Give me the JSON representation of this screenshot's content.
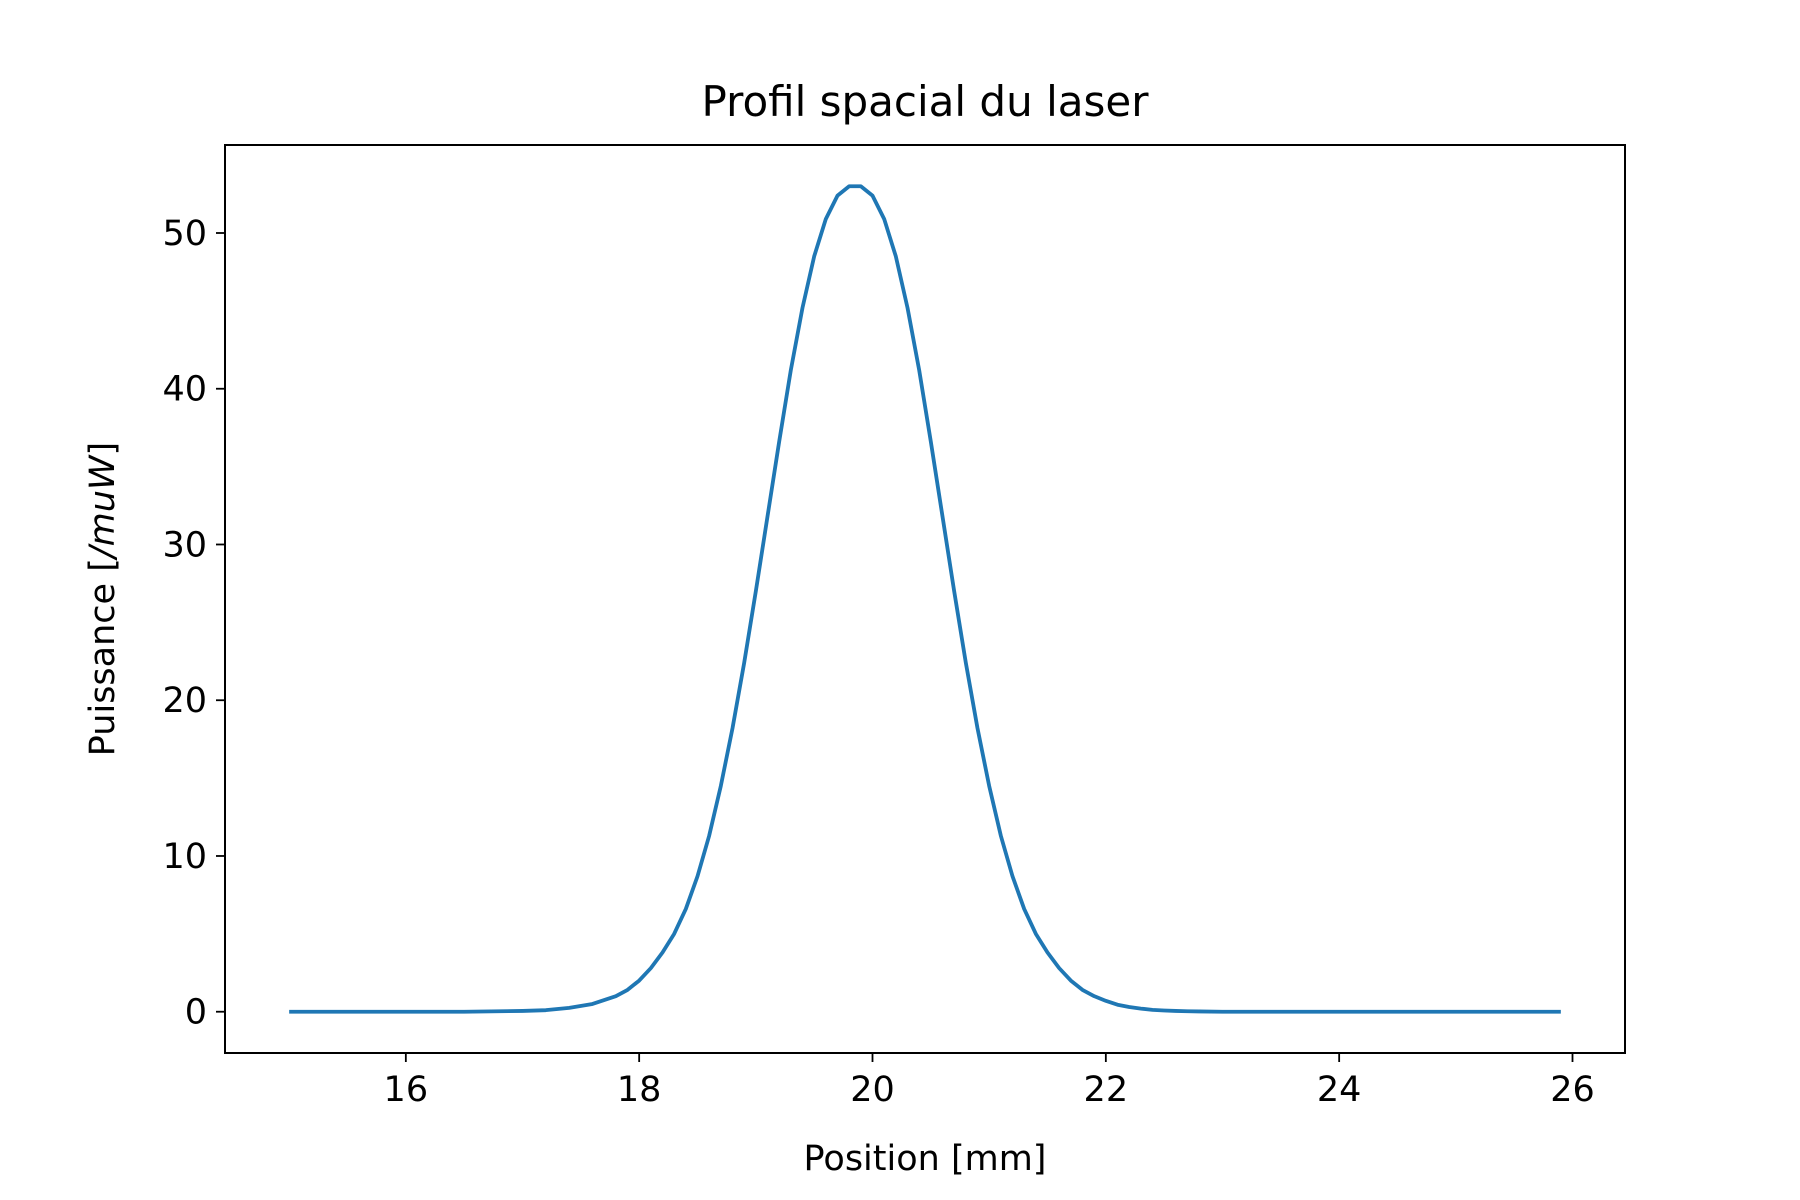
{
  "chart_data": {
    "type": "line",
    "title": "Profil spacial du laser",
    "xlabel": "Position [mm]",
    "ylabel_prefix": "Puissance [",
    "ylabel_italic": "/muW",
    "ylabel_suffix": "]",
    "xlim": [
      14.45,
      26.45
    ],
    "ylim": [
      -2.65,
      55.65
    ],
    "xticks": [
      16,
      18,
      20,
      22,
      24,
      26
    ],
    "xtick_labels": [
      "16",
      "18",
      "20",
      "22",
      "24",
      "26"
    ],
    "yticks": [
      0,
      10,
      20,
      30,
      40,
      50
    ],
    "ytick_labels": [
      "0",
      "10",
      "20",
      "30",
      "40",
      "50"
    ],
    "grid": false,
    "legend": "none",
    "series": [
      {
        "color": "#1f77b4",
        "x": [
          15.0,
          15.5,
          16.0,
          16.5,
          17.0,
          17.2,
          17.4,
          17.6,
          17.8,
          17.9,
          18.0,
          18.1,
          18.2,
          18.3,
          18.4,
          18.5,
          18.6,
          18.7,
          18.8,
          18.9,
          19.0,
          19.1,
          19.2,
          19.3,
          19.4,
          19.5,
          19.6,
          19.7,
          19.8,
          19.9,
          20.0,
          20.1,
          20.2,
          20.3,
          20.4,
          20.5,
          20.6,
          20.7,
          20.8,
          20.9,
          21.0,
          21.1,
          21.2,
          21.3,
          21.4,
          21.5,
          21.6,
          21.7,
          21.8,
          21.9,
          22.0,
          22.1,
          22.2,
          22.3,
          22.4,
          22.5,
          22.6,
          22.7,
          22.8,
          23.0,
          23.2,
          23.5,
          24.0,
          24.5,
          25.0,
          25.5,
          25.9
        ],
        "y": [
          0.0,
          0.0,
          0.0,
          0.0,
          0.05,
          0.1,
          0.25,
          0.5,
          1.0,
          1.4,
          2.0,
          2.8,
          3.8,
          5.0,
          6.6,
          8.7,
          11.3,
          14.5,
          18.2,
          22.4,
          27.0,
          31.8,
          36.6,
          41.2,
          45.2,
          48.5,
          50.9,
          52.4,
          53.0,
          53.0,
          52.4,
          50.9,
          48.5,
          45.2,
          41.2,
          36.6,
          31.8,
          27.0,
          22.4,
          18.2,
          14.5,
          11.3,
          8.7,
          6.6,
          5.0,
          3.8,
          2.8,
          2.0,
          1.4,
          1.0,
          0.7,
          0.45,
          0.3,
          0.2,
          0.12,
          0.08,
          0.05,
          0.03,
          0.02,
          0.0,
          0.0,
          0.0,
          0.0,
          0.0,
          0.0,
          0.0,
          0.0
        ]
      }
    ]
  }
}
